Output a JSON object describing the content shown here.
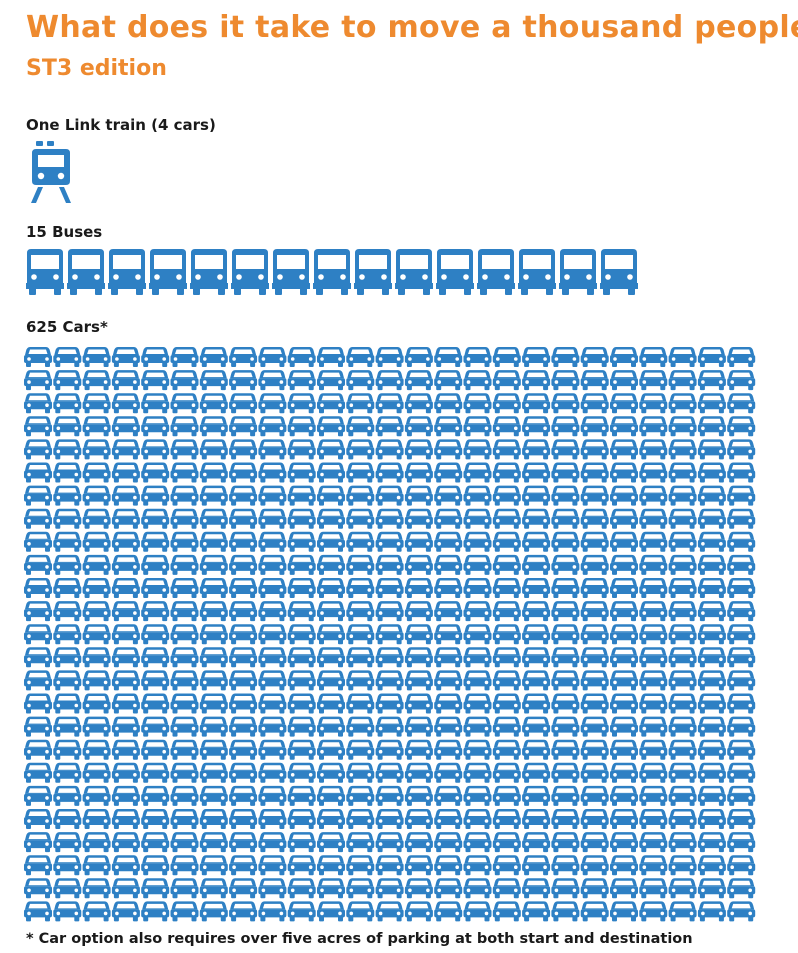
{
  "title": "What does it take to move a thousand people?",
  "subtitle": "ST3 edition",
  "colors": {
    "accent": "#ee8a2f",
    "icon": "#2e80c4",
    "text": "#1a1a1a"
  },
  "sections": {
    "train": {
      "label": "One Link train (4 cars)",
      "count": 1,
      "icon": "train-icon"
    },
    "buses": {
      "label": "15 Buses",
      "count": 15,
      "icon": "bus-icon"
    },
    "cars": {
      "label": "625 Cars*",
      "count": 625,
      "icon": "car-icon"
    }
  },
  "footnote": "* Car option also requires over five acres of parking at both start and destination"
}
